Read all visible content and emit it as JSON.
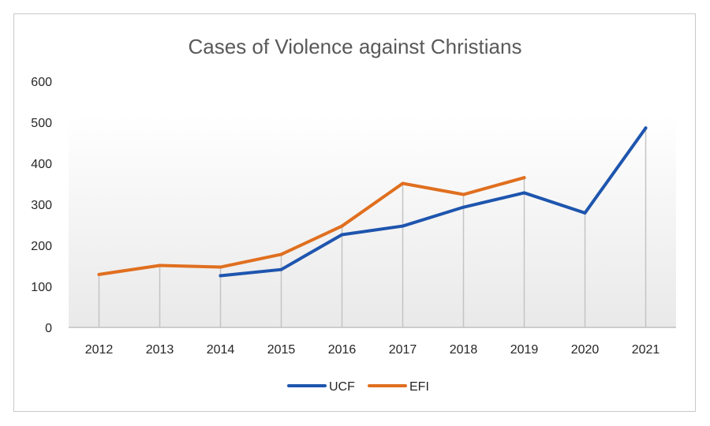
{
  "chart_data": {
    "type": "line",
    "title": "Cases of Violence against Christians",
    "xlabel": "",
    "ylabel": "",
    "categories": [
      "2012",
      "2013",
      "2014",
      "2015",
      "2016",
      "2017",
      "2018",
      "2019",
      "2020",
      "2021"
    ],
    "ylim": [
      0,
      600
    ],
    "yticks": [
      0,
      100,
      200,
      300,
      400,
      500,
      600
    ],
    "ytick_labels": [
      "0",
      "100",
      "200",
      "300",
      "400",
      "500",
      "600"
    ],
    "grid": false,
    "drop_lines": true,
    "legend": {
      "position": "bottom",
      "entries": [
        "UCF",
        "EFI"
      ]
    },
    "series": [
      {
        "name": "UCF",
        "color": "#1E55AE",
        "values": [
          null,
          null,
          126,
          141,
          226,
          247,
          293,
          328,
          279,
          486
        ]
      },
      {
        "name": "EFI",
        "color": "#E06F1F",
        "values": [
          129,
          151,
          147,
          178,
          247,
          351,
          324,
          365,
          null,
          null
        ]
      }
    ]
  }
}
